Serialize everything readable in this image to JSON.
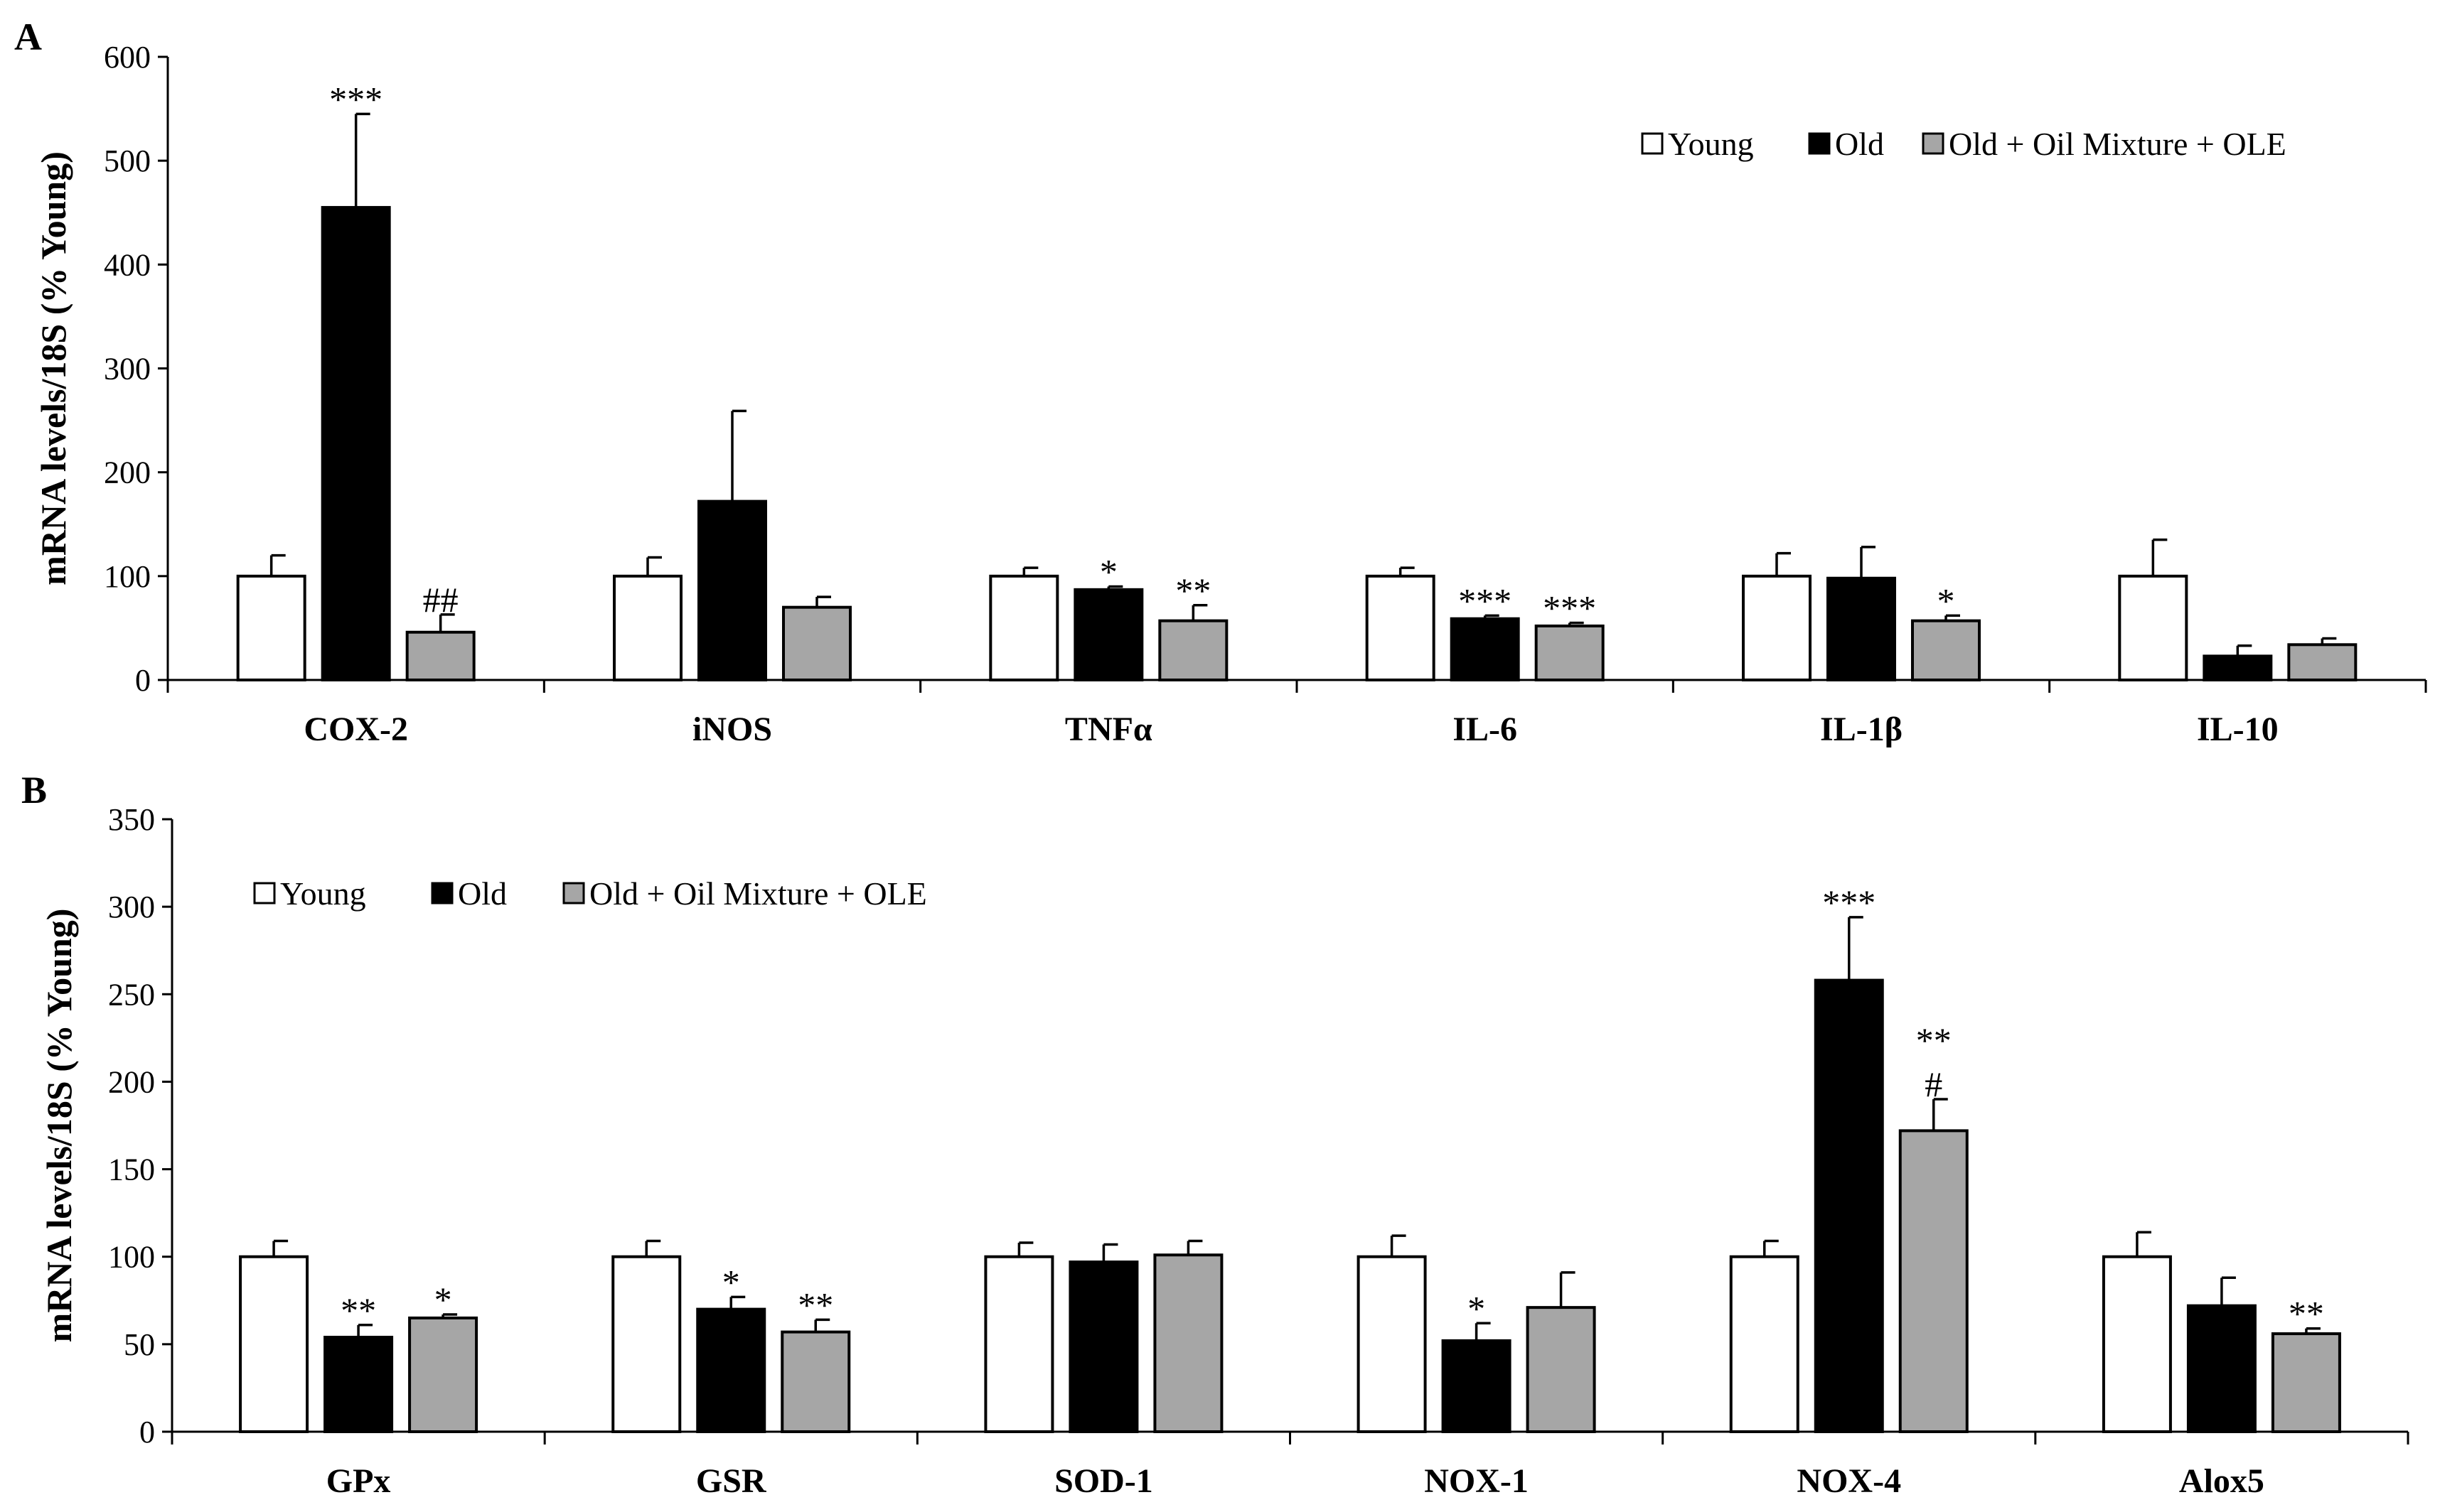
{
  "series_colors": {
    "Young": "#ffffff",
    "Old": "#000000",
    "Old + Oil Mixture + OLE": "#a6a6a6"
  },
  "chart_data": [
    {
      "panel": "A",
      "type": "bar",
      "ylabel": "mRNA levels/18S (% Young)",
      "ylim": [
        0,
        600
      ],
      "yticks": [
        0,
        100,
        200,
        300,
        400,
        500,
        600
      ],
      "legend_position": "top-right",
      "categories": [
        "COX-2",
        "iNOS",
        "TNFα",
        "IL-6",
        "IL-1β",
        "IL-10"
      ],
      "series": [
        {
          "name": "Young",
          "values": [
            100,
            100,
            100,
            100,
            100,
            100
          ],
          "errors": [
            20,
            18,
            8,
            8,
            22,
            35
          ],
          "labels": [
            "",
            "",
            "",
            "",
            "",
            ""
          ]
        },
        {
          "name": "Old",
          "values": [
            455,
            172,
            87,
            59,
            98,
            23
          ],
          "errors": [
            90,
            87,
            3,
            3,
            30,
            10
          ],
          "labels": [
            "***",
            "",
            "*",
            "***",
            "",
            ""
          ]
        },
        {
          "name": "Old + Oil Mixture + OLE",
          "values": [
            46,
            70,
            57,
            52,
            57,
            34
          ],
          "errors": [
            17,
            10,
            15,
            3,
            5,
            6
          ],
          "labels": [
            "##",
            "",
            "**",
            "***",
            "*",
            ""
          ]
        }
      ]
    },
    {
      "panel": "B",
      "type": "bar",
      "ylabel": "mRNA levels/18S (% Young)",
      "ylim": [
        0,
        350
      ],
      "yticks": [
        0,
        50,
        100,
        150,
        200,
        250,
        300,
        350
      ],
      "legend_position": "top-left",
      "categories": [
        "GPx",
        "GSR",
        "SOD-1",
        "NOX-1",
        "NOX-4",
        "Alox5"
      ],
      "series": [
        {
          "name": "Young",
          "values": [
            100,
            100,
            100,
            100,
            100,
            100
          ],
          "errors": [
            9,
            9,
            8,
            12,
            9,
            14
          ],
          "labels": [
            "",
            "",
            "",
            "",
            "",
            ""
          ]
        },
        {
          "name": "Old",
          "values": [
            54,
            70,
            97,
            52,
            258,
            72
          ],
          "errors": [
            7,
            7,
            10,
            10,
            36,
            16
          ],
          "labels": [
            "**",
            "*",
            "",
            "*",
            "***",
            ""
          ]
        },
        {
          "name": "Old + Oil Mixture + OLE",
          "values": [
            65,
            57,
            101,
            71,
            172,
            56
          ],
          "errors": [
            2,
            7,
            8,
            20,
            18,
            3
          ],
          "labels": [
            "*",
            "**",
            "",
            "",
            "**\n#",
            "**"
          ]
        }
      ]
    }
  ]
}
